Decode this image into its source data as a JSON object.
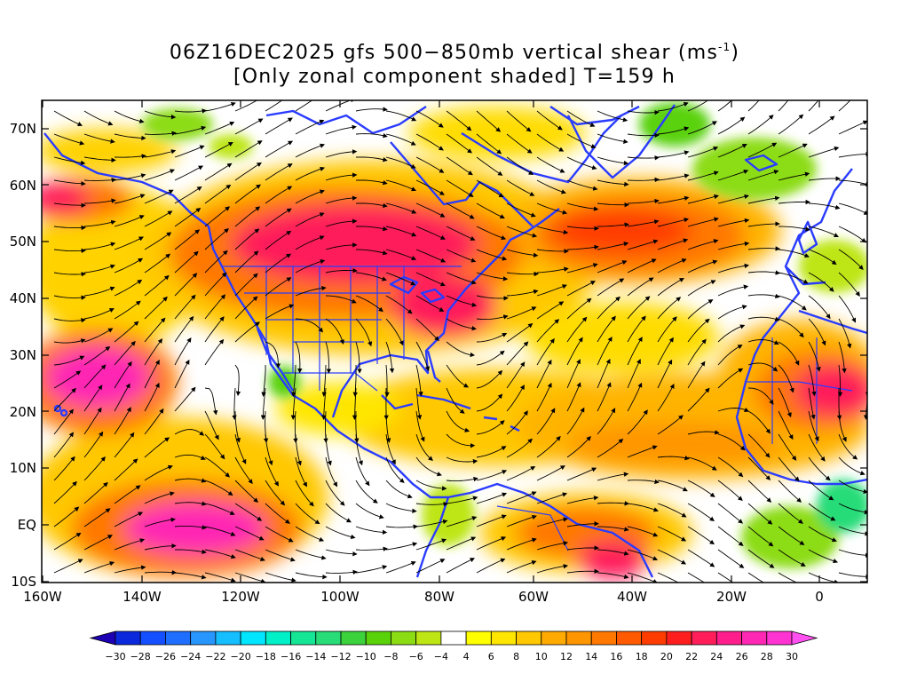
{
  "title": {
    "line1_pre": "06Z16DEC2025 gfs 500−850mb vertical shear (ms",
    "line1_sup": "-1",
    "line1_post": ")",
    "line2": "[Only zonal component shaded] T=159 h"
  },
  "axes": {
    "lat_labels": [
      "70N",
      "60N",
      "50N",
      "40N",
      "30N",
      "20N",
      "10N",
      "EQ",
      "10S"
    ],
    "lon_labels": [
      "160W",
      "140W",
      "120W",
      "100W",
      "80W",
      "60W",
      "40W",
      "20W",
      "0"
    ]
  },
  "colorbar": {
    "labels": [
      "−30",
      "−28",
      "−26",
      "−24",
      "−22",
      "−20",
      "−18",
      "−16",
      "−14",
      "−12",
      "−10",
      "−8",
      "−6",
      "−4",
      "4",
      "6",
      "8",
      "10",
      "12",
      "14",
      "16",
      "18",
      "20",
      "22",
      "24",
      "26",
      "28",
      "30"
    ],
    "colors": [
      "#1e00b4",
      "#0a28dc",
      "#1450ff",
      "#1e6eff",
      "#2896ff",
      "#14beff",
      "#00e6ff",
      "#00f0c8",
      "#14e696",
      "#28dc78",
      "#3cd23c",
      "#5ad20a",
      "#8cdc14",
      "#bee614",
      "#ffffff",
      "#ffff00",
      "#ffe600",
      "#ffc800",
      "#ffaa00",
      "#ff9600",
      "#ff7800",
      "#ff5a00",
      "#ff3c00",
      "#ff1e1e",
      "#ff1e5a",
      "#ff1e8c",
      "#ff28b4",
      "#ff32d2",
      "#ff50f0"
    ]
  },
  "map": {
    "region": "160W–10E, 10S–75N",
    "coastline_color": "#2a3cff",
    "streamline_color": "#000000"
  }
}
